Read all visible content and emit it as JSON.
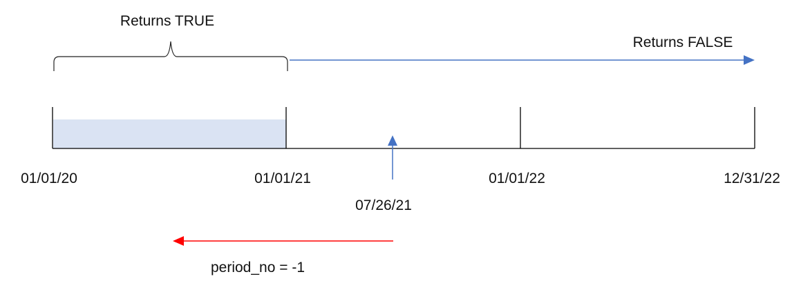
{
  "labels": {
    "returns_true": "Returns TRUE",
    "returns_false": "Returns FALSE",
    "period": "period_no = -1"
  },
  "dates": [
    "01/01/20",
    "01/01/21",
    "01/01/22",
    "12/31/22"
  ],
  "marker_date": "07/26/21",
  "colors": {
    "highlight": "#dae3f3",
    "false_arrow": "#4472c4",
    "marker_arrow": "#4472c4",
    "period_arrow": "#ff0000"
  }
}
